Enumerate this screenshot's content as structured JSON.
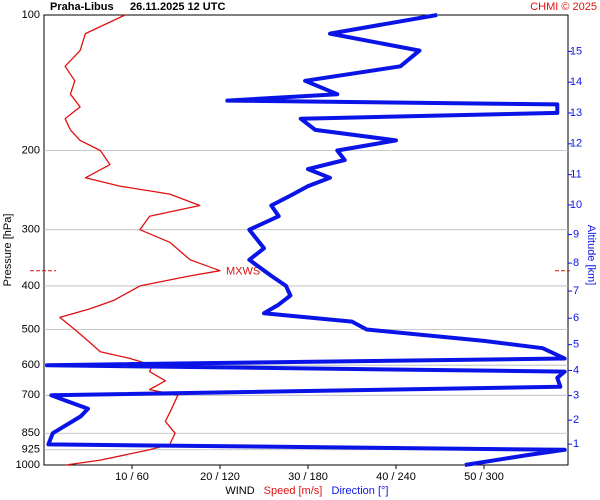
{
  "chart_data": {
    "type": "profile",
    "title": "Praha-Libus",
    "subtitle": "26.11.2025 12 UTC",
    "credit": "CHMI © 2025",
    "ylabel": "Pressure [hPa]",
    "y2label": "Altitude [km]",
    "xlabel": "WIND",
    "xlabel_speed": "Speed [m/s]",
    "xlabel_direction": "Direction [°]",
    "ylog": true,
    "ylim": [
      100,
      1000
    ],
    "yticks": [
      100,
      200,
      300,
      400,
      500,
      600,
      700,
      850,
      925,
      1000
    ],
    "y2ticks": [
      1,
      2,
      3,
      4,
      5,
      6,
      7,
      8,
      9,
      10,
      11,
      12,
      13,
      14,
      15
    ],
    "xlim": [
      0,
      60
    ],
    "x2lim": [
      0,
      360
    ],
    "xticks": [
      {
        "value": 10,
        "label": "10 / 60"
      },
      {
        "value": 20,
        "label": "20 / 120"
      },
      {
        "value": 30,
        "label": "30 / 180"
      },
      {
        "value": 40,
        "label": "40 / 240"
      },
      {
        "value": 50,
        "label": "50 / 300"
      }
    ],
    "grid": true,
    "mxws": {
      "label": "MXWS",
      "pressure": 370
    },
    "series": [
      {
        "name": "Speed",
        "color": "#e01010",
        "axis": "x",
        "y": [
          1000,
          975,
          925,
          900,
          850,
          800,
          750,
          700,
          680,
          650,
          620,
          600,
          580,
          560,
          530,
          500,
          470,
          450,
          430,
          400,
          380,
          370,
          350,
          320,
          300,
          280,
          265,
          250,
          240,
          230,
          215,
          200,
          190,
          180,
          170,
          160,
          150,
          140,
          130,
          120,
          110,
          100
        ],
        "values": [
          2.5,
          6.4,
          12,
          14.3,
          14.9,
          13.8,
          14.5,
          15.2,
          12,
          13.8,
          12,
          12.3,
          9.8,
          6.4,
          5,
          3.5,
          1.8,
          5.2,
          8,
          10.9,
          16.6,
          20,
          16.6,
          14.3,
          10.9,
          12,
          17.7,
          14.3,
          8.6,
          4.7,
          7.5,
          6.4,
          4.1,
          3,
          2.4,
          4.1,
          3,
          3.5,
          2.4,
          4.1,
          4.7,
          9.2
        ]
      },
      {
        "name": "Direction",
        "color": "#0a14e6",
        "axis": "x2",
        "y": [
          1000,
          950,
          925,
          900,
          850,
          780,
          750,
          720,
          700,
          670,
          640,
          620,
          600,
          580,
          550,
          530,
          500,
          480,
          460,
          440,
          420,
          400,
          380,
          350,
          330,
          300,
          280,
          265,
          250,
          240,
          230,
          220,
          210,
          200,
          190,
          180,
          170,
          165,
          158,
          155,
          150,
          140,
          130,
          120,
          110,
          100
        ],
        "values": [
          287,
          330,
          355,
          3,
          6,
          25,
          30,
          15,
          5,
          352,
          350,
          355,
          2,
          355,
          340,
          300,
          220,
          210,
          150,
          160,
          168,
          165,
          155,
          140,
          150,
          140,
          160,
          155,
          170,
          180,
          195,
          180,
          205,
          200,
          240,
          185,
          175,
          350,
          350,
          125,
          200,
          178,
          243,
          256,
          195,
          268
        ]
      }
    ]
  }
}
